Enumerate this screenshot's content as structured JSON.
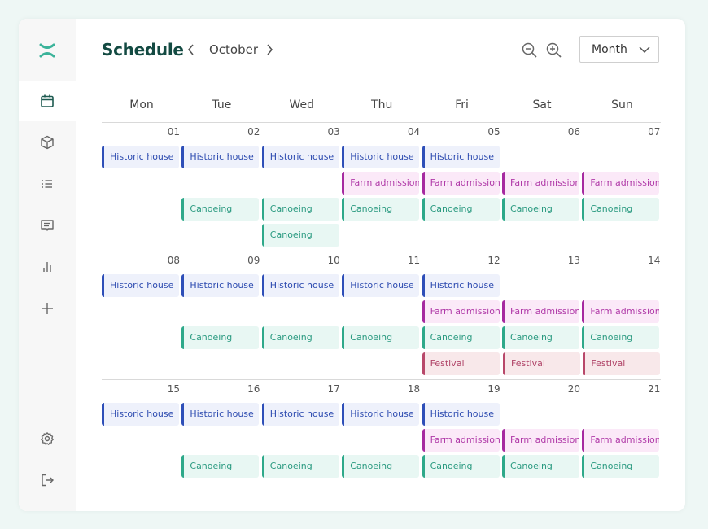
{
  "header": {
    "title": "Schedule",
    "month": "October",
    "view": "Month"
  },
  "sidebar": {
    "items": [
      {
        "name": "calendar",
        "icon": "calendar-icon",
        "active": true
      },
      {
        "name": "packages",
        "icon": "box-icon"
      },
      {
        "name": "list",
        "icon": "list-icon"
      },
      {
        "name": "messages",
        "icon": "message-icon"
      },
      {
        "name": "reports",
        "icon": "bar-chart-icon"
      },
      {
        "name": "add",
        "icon": "plus-icon"
      }
    ],
    "bottom": [
      {
        "name": "settings",
        "icon": "gear-icon"
      },
      {
        "name": "logout",
        "icon": "logout-icon"
      }
    ]
  },
  "weekdays": [
    "Mon",
    "Tue",
    "Wed",
    "Thu",
    "Fri",
    "Sat",
    "Sun"
  ],
  "event_styles": {
    "Historic house": {
      "bg": "#eef1fb",
      "border": "#2e4fb8",
      "text": "#2d4bb0"
    },
    "Farm admission": {
      "bg": "#fbe9f8",
      "border": "#a62aa0",
      "text": "#b03aa8"
    },
    "Canoeing": {
      "bg": "#e8f7f3",
      "border": "#2ea98a",
      "text": "#2a9a80"
    },
    "Festival": {
      "bg": "#f8e8ea",
      "border": "#b8486a",
      "text": "#b04468"
    }
  },
  "weeks": [
    {
      "days": [
        {
          "date": "01",
          "events": [
            "Historic house"
          ]
        },
        {
          "date": "02",
          "events": [
            "Historic house",
            "Canoeing"
          ]
        },
        {
          "date": "03",
          "events": [
            "Historic house",
            "Canoeing",
            "Canoeing"
          ]
        },
        {
          "date": "04",
          "events": [
            "Historic house",
            "Farm admission",
            "Canoeing"
          ]
        },
        {
          "date": "05",
          "events": [
            "Historic house",
            "Farm admission",
            "Canoeing"
          ]
        },
        {
          "date": "06",
          "events": [
            "Farm admission",
            "Canoeing"
          ]
        },
        {
          "date": "07",
          "events": [
            "Farm admission",
            "Canoeing"
          ]
        }
      ]
    },
    {
      "days": [
        {
          "date": "08",
          "events": [
            "Historic house"
          ]
        },
        {
          "date": "09",
          "events": [
            "Historic house",
            "Canoeing"
          ]
        },
        {
          "date": "10",
          "events": [
            "Historic house",
            "Canoeing"
          ]
        },
        {
          "date": "11",
          "events": [
            "Historic house",
            "Canoeing"
          ]
        },
        {
          "date": "12",
          "events": [
            "Historic house",
            "Farm admission",
            "Canoeing",
            "Festival"
          ]
        },
        {
          "date": "13",
          "events": [
            "Farm admission",
            "Canoeing",
            "Festival"
          ]
        },
        {
          "date": "14",
          "events": [
            "Farm admission",
            "Canoeing",
            "Festival"
          ]
        }
      ]
    },
    {
      "days": [
        {
          "date": "15",
          "events": [
            "Historic house"
          ]
        },
        {
          "date": "16",
          "events": [
            "Historic house",
            "Canoeing"
          ]
        },
        {
          "date": "17",
          "events": [
            "Historic house",
            "Canoeing"
          ]
        },
        {
          "date": "18",
          "events": [
            "Historic house",
            "Canoeing"
          ]
        },
        {
          "date": "19",
          "events": [
            "Historic house",
            "Farm admission",
            "Canoeing"
          ]
        },
        {
          "date": "20",
          "events": [
            "Farm admission",
            "Canoeing"
          ]
        },
        {
          "date": "21",
          "events": [
            "Farm admission",
            "Canoeing"
          ]
        }
      ]
    }
  ]
}
